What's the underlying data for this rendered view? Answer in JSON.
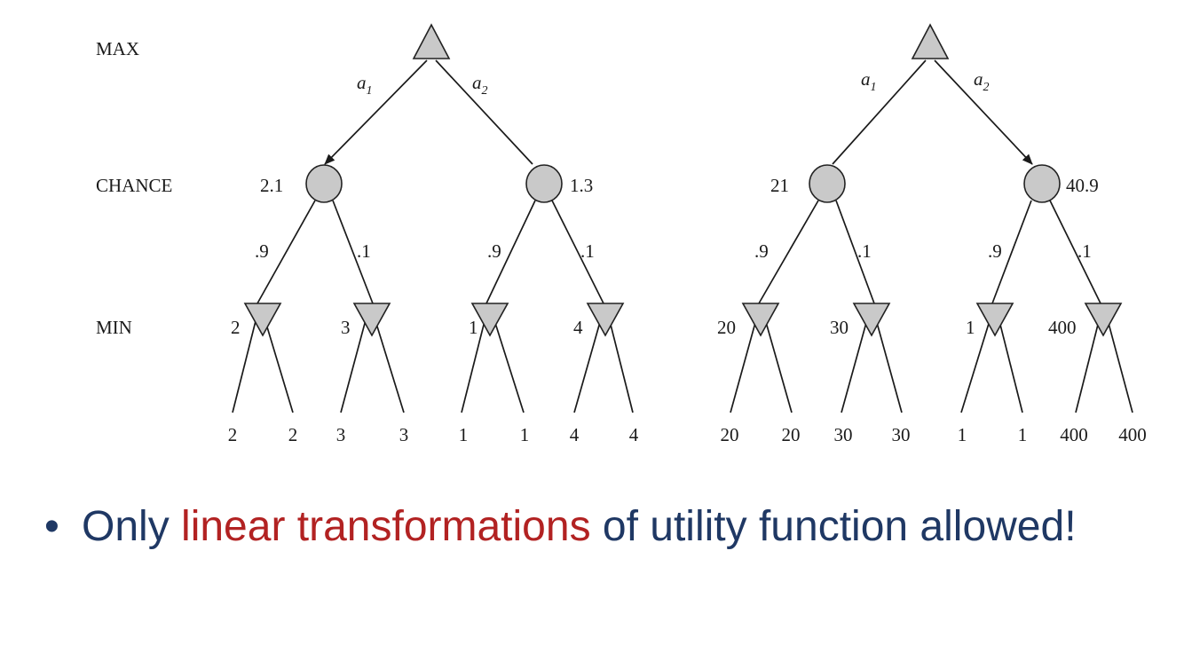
{
  "row_labels": {
    "max": "MAX",
    "chance": "CHANCE",
    "min": "MIN"
  },
  "trees": [
    {
      "id": "left",
      "action_labels": [
        "a",
        "a"
      ],
      "action_subscripts": [
        "1",
        "2"
      ],
      "chosen_action": 0,
      "chance_values": [
        "2.1",
        "1.3"
      ],
      "probabilities": [
        ".9",
        ".1",
        ".9",
        ".1"
      ],
      "min_values": [
        "2",
        "3",
        "1",
        "4"
      ],
      "leaf_values": [
        "2",
        "2",
        "3",
        "3",
        "1",
        "1",
        "4",
        "4"
      ]
    },
    {
      "id": "right",
      "action_labels": [
        "a",
        "a"
      ],
      "action_subscripts": [
        "1",
        "2"
      ],
      "chosen_action": 1,
      "chance_values": [
        "21",
        "40.9"
      ],
      "probabilities": [
        ".9",
        ".1",
        ".9",
        ".1"
      ],
      "min_values": [
        "20",
        "30",
        "1",
        "400"
      ],
      "leaf_values": [
        "20",
        "20",
        "30",
        "30",
        "1",
        "1",
        "400",
        "400"
      ]
    }
  ],
  "bullet": {
    "symbol": "•",
    "before": "Only ",
    "highlight": "linear transformations",
    "after": " of utility function allowed!"
  },
  "colors": {
    "text": "#1f3864",
    "highlight": "#b22222",
    "node_fill": "#c9c9c9"
  }
}
